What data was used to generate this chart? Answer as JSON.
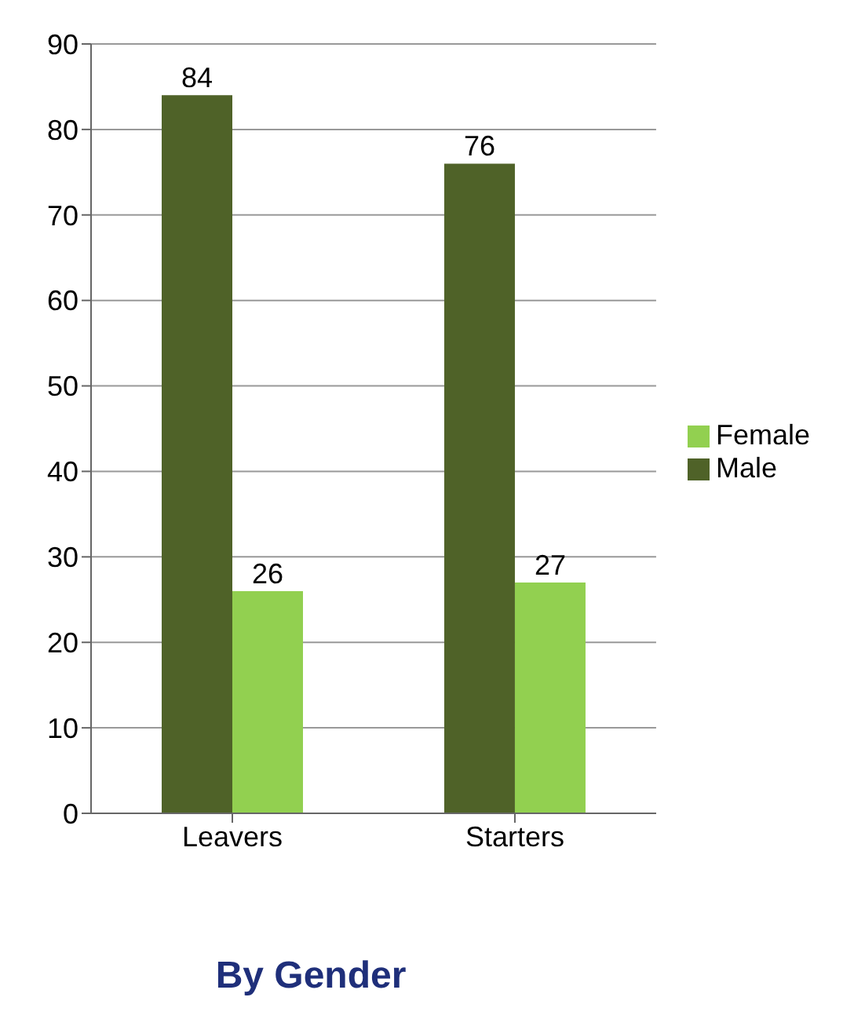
{
  "chart_data": {
    "type": "bar",
    "title": "By Gender",
    "categories": [
      "Leavers",
      "Starters"
    ],
    "series": [
      {
        "name": "Male",
        "color": "#4f6228",
        "values": [
          84,
          76
        ]
      },
      {
        "name": "Female",
        "color": "#92d050",
        "values": [
          26,
          27
        ]
      }
    ],
    "ylim": [
      0,
      90
    ],
    "yticks": [
      0,
      10,
      20,
      30,
      40,
      50,
      60,
      70,
      80,
      90
    ],
    "grid": "y",
    "legend": "right",
    "data_labels": true
  }
}
